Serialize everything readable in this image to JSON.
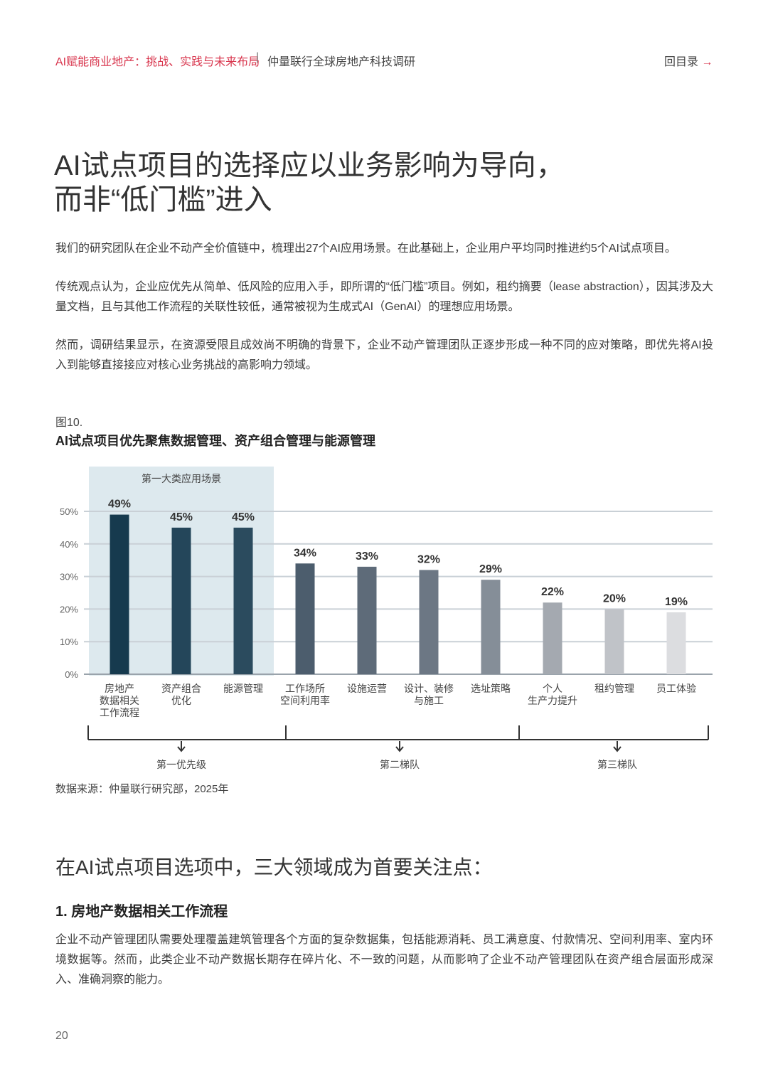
{
  "header": {
    "report": "AI赋能商业地产：挑战、实践与未来布局",
    "separator": "|",
    "survey": "仲量联行全球房地产科技调研",
    "back_link": "回目录"
  },
  "title": [
    "AI试点项目的选择应以业务影响为导向，",
    "而非“低门槛”进入"
  ],
  "paragraphs": [
    "我们的研究团队在企业不动产全价值链中，梳理出27个AI应用场景。在此基础上，企业用户平均同时推进约5个AI试点项目。",
    "传统观点认为，企业应优先从简单、低风险的应用入手，即所谓的“低门槛”项目。例如，租约摘要（lease abstraction），因其涉及大量文档，且与其他工作流程的关联性较低，通常被视为生成式AI（GenAI）的理想应用场景。",
    "然而，调研结果显示，在资源受限且成效尚不明确的背景下，企业不动产管理团队正逐步形成一种不同的应对策略，即优先将AI投入到能够直接接应对核心业务挑战的高影响力领域。"
  ],
  "figure_label": "图10.",
  "chart_data": {
    "type": "bar",
    "title": "AI试点项目优先聚焦数据管理、资产组合管理与能源管理",
    "categories": [
      "房地产\n数据相关\n工作流程",
      "资产组合\n优化",
      "能源管理",
      "工作场所\n空间利用率",
      "设施运营",
      "设计、装修\n与施工",
      "选址策略",
      "个人\n生产力提升",
      "租约管理",
      "员工体验"
    ],
    "values": [
      49,
      45,
      45,
      34,
      33,
      32,
      29,
      22,
      20,
      19
    ],
    "value_labels": [
      "49%",
      "45%",
      "45%",
      "34%",
      "33%",
      "32%",
      "29%",
      "22%",
      "20%",
      "19%"
    ],
    "colors": [
      "#163a4e",
      "#24465a",
      "#2b4b5e",
      "#4c5d6d",
      "#5e6b79",
      "#6c7784",
      "#858e98",
      "#a4a9b0",
      "#c0c3c8",
      "#dcdde0"
    ],
    "ylim": [
      0,
      50
    ],
    "yticks": [
      {
        "value": 0,
        "label": "0%"
      },
      {
        "value": 10,
        "label": "10%"
      },
      {
        "value": 20,
        "label": "20%"
      },
      {
        "value": 30,
        "label": "30%"
      },
      {
        "value": 40,
        "label": "40%"
      },
      {
        "value": 50,
        "label": "50%"
      }
    ],
    "grid": true,
    "highlight_label": "第一大类应用场景",
    "groups": [
      "第一优先级",
      "第二梯队",
      "第三梯队"
    ]
  },
  "source": "数据来源：仲量联行研究部，2025年",
  "section_title": "在AI试点项目选项中，三大领域成为首要关注点：",
  "subsection_title": "1. 房地产数据相关工作流程",
  "body": "企业不动产管理团队需要处理覆盖建筑管理各个方面的复杂数据集，包括能源消耗、员工满意度、付款情况、空间利用率、室内环境数据等。然而，此类企业不动产数据长期存在碎片化、不一致的问题，从而影响了企业不动产管理团队在资产组合层面形成深入、准确洞察的能力。",
  "page_number": "20"
}
